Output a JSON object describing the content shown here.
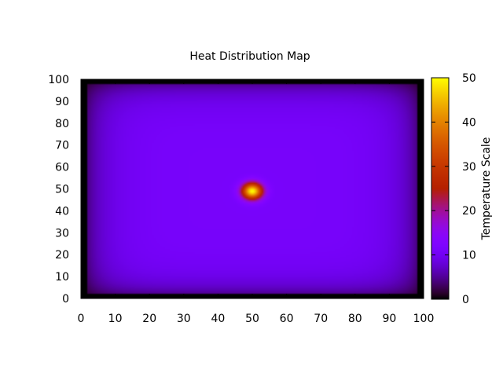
{
  "chart_data": {
    "type": "heatmap",
    "title": "Heat Distribution Map",
    "xlabel": "",
    "ylabel": "",
    "colorbar_label": "Temperature Scale",
    "xlim": [
      0,
      100
    ],
    "ylim": [
      0,
      100
    ],
    "zlim": [
      0,
      50
    ],
    "x_ticks": [
      "0",
      "10",
      "20",
      "30",
      "40",
      "50",
      "60",
      "70",
      "80",
      "90",
      "100"
    ],
    "y_ticks": [
      "0",
      "10",
      "20",
      "30",
      "40",
      "50",
      "60",
      "70",
      "80",
      "90",
      "100"
    ],
    "colorbar_ticks": [
      "0",
      "10",
      "20",
      "30",
      "40",
      "50"
    ],
    "palette": "gnuplot default (black-blue-violet-red-orange-yellow)",
    "grid": false,
    "legend": "colorbar-right",
    "hotspot": {
      "x": 50,
      "y": 49,
      "peak_value": 50
    },
    "samples": [
      {
        "x": 50,
        "y": 49,
        "value": 50
      },
      {
        "x": 45,
        "y": 49,
        "value": 24
      },
      {
        "x": 40,
        "y": 49,
        "value": 14
      },
      {
        "x": 30,
        "y": 49,
        "value": 9
      },
      {
        "x": 20,
        "y": 49,
        "value": 6
      },
      {
        "x": 10,
        "y": 49,
        "value": 3
      },
      {
        "x": 3,
        "y": 49,
        "value": 0
      },
      {
        "x": 50,
        "y": 90,
        "value": 3
      },
      {
        "x": 50,
        "y": 10,
        "value": 3
      }
    ]
  }
}
